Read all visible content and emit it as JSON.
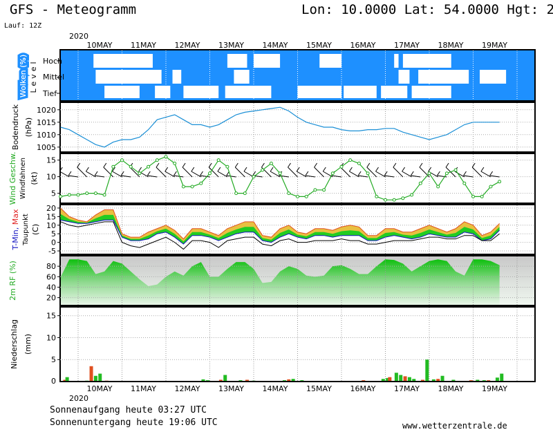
{
  "header": {
    "title": "GFS - Meteogramm",
    "location": "Lon: 10.0000 Lat: 54.0000 Hgt: 2",
    "run": "Lauf: 12Z"
  },
  "footer": {
    "sunrise": "Sonnenaufgang heute 03:27 UTC",
    "sunset": "Sonnenuntergang heute 19:06 UTC",
    "site": "www.wetterzentrale.de"
  },
  "axis": {
    "year": "2020",
    "days": [
      "10MAY",
      "11MAY",
      "12MAY",
      "13MAY",
      "14MAY",
      "15MAY",
      "16MAY",
      "17MAY",
      "18MAY",
      "19MAY"
    ]
  },
  "colors": {
    "cloud_bg": "#1e90ff",
    "pressure_line": "#1a8fd6",
    "wind_line": "#22aa22",
    "humidity": "#22cc22",
    "precip_green": "#22bb22",
    "precip_red": "#e05020",
    "tmax_orange": "#f0a030",
    "tmin_green": "#22cc22",
    "dewpoint": "#000000"
  },
  "chart_data": [
    {
      "type": "heatmap",
      "id": "clouds",
      "ylabel": "Wolken (%)",
      "level_label": "Level",
      "levels": [
        "Hoch",
        "Mittel",
        "Tief"
      ],
      "clear_segments": {
        "hoch": [
          [
            0.35,
            1.7
          ],
          [
            3.4,
            3.85
          ],
          [
            4.0,
            4.6
          ],
          [
            5.5,
            6.0
          ],
          [
            7.2,
            7.3
          ],
          [
            7.4,
            8.5
          ]
        ],
        "mittel": [
          [
            0.4,
            1.9
          ],
          [
            2.15,
            2.35
          ],
          [
            3.55,
            3.9
          ],
          [
            7.3,
            7.55
          ],
          [
            7.75,
            8.9
          ],
          [
            9.15,
            9.75
          ]
        ],
        "tief": [
          [
            0.6,
            1.4
          ],
          [
            1.75,
            2.1
          ],
          [
            2.4,
            3.2
          ],
          [
            3.35,
            4.4
          ],
          [
            5.0,
            6.0
          ],
          [
            6.05,
            6.8
          ],
          [
            6.9,
            7.5
          ],
          [
            7.6,
            8.5
          ]
        ]
      }
    },
    {
      "type": "line",
      "id": "pressure",
      "ylabel": "Bodendruck",
      "unit": "(hPa)",
      "ylim": [
        1003,
        1023
      ],
      "yticks": [
        1005,
        1010,
        1015,
        1020
      ],
      "x": [
        0,
        0.2,
        0.4,
        0.6,
        0.8,
        1.0,
        1.2,
        1.4,
        1.6,
        1.8,
        2.0,
        2.2,
        2.4,
        2.6,
        2.8,
        3.0,
        3.2,
        3.4,
        3.6,
        3.8,
        4.0,
        4.2,
        4.4,
        4.6,
        4.8,
        5.0,
        5.2,
        5.4,
        5.6,
        5.8,
        6.0,
        6.2,
        6.4,
        6.6,
        6.8,
        7.0,
        7.2,
        7.4,
        7.6,
        7.8,
        8.0,
        8.2,
        8.4,
        8.6,
        8.8,
        9.0,
        9.2,
        9.4,
        9.6,
        9.8,
        10.0
      ],
      "values": [
        1013,
        1012,
        1010,
        1008,
        1006,
        1005,
        1007,
        1008,
        1008,
        1009,
        1012,
        1016,
        1017,
        1018,
        1016,
        1014,
        1014,
        1013,
        1014,
        1016,
        1018,
        1019,
        1019.5,
        1020,
        1020.5,
        1021,
        1019.5,
        1017,
        1015,
        1014,
        1013,
        1013,
        1012,
        1011.5,
        1011.5,
        1012,
        1012,
        1012.5,
        1012.5,
        1011,
        1010,
        1009,
        1008,
        1009,
        1010,
        1012,
        1014,
        1015,
        1015,
        1015,
        1015
      ]
    },
    {
      "type": "line",
      "id": "wind",
      "ylabel": "Wind Geschw.",
      "ylabel2": "Windfahnen",
      "unit": "(kt)",
      "ylim": [
        2,
        17
      ],
      "yticks": [
        5,
        10,
        15
      ],
      "x": [
        0,
        0.2,
        0.4,
        0.6,
        0.8,
        1.0,
        1.2,
        1.4,
        1.6,
        1.8,
        2.0,
        2.2,
        2.4,
        2.6,
        2.8,
        3.0,
        3.2,
        3.4,
        3.6,
        3.8,
        4.0,
        4.2,
        4.4,
        4.6,
        4.8,
        5.0,
        5.2,
        5.4,
        5.6,
        5.8,
        6.0,
        6.2,
        6.4,
        6.6,
        6.8,
        7.0,
        7.2,
        7.4,
        7.6,
        7.8,
        8.0,
        8.2,
        8.4,
        8.6,
        8.8,
        9.0,
        9.2,
        9.4,
        9.6,
        9.8,
        10.0
      ],
      "values": [
        4,
        4.5,
        4.5,
        5,
        5,
        4.5,
        13,
        15,
        13,
        11,
        13,
        15,
        16,
        14,
        7,
        7,
        8,
        11,
        15,
        13,
        5,
        5,
        10,
        12,
        14,
        11,
        5,
        4,
        4,
        6,
        6,
        11,
        13,
        15,
        14,
        11,
        4,
        3,
        3,
        3.5,
        4.5,
        8,
        11,
        7,
        11,
        12,
        8,
        4,
        4,
        7,
        8.5
      ]
    },
    {
      "type": "area",
      "id": "temperature",
      "ylabel": "T-Min, Max",
      "ylabel2": "Taupunkt",
      "unit": "(C)",
      "ylim": [
        -7,
        22
      ],
      "yticks": [
        -5,
        0,
        5,
        10,
        15,
        20
      ],
      "x": [
        0,
        0.2,
        0.4,
        0.6,
        0.8,
        1.0,
        1.2,
        1.4,
        1.6,
        1.8,
        2.0,
        2.2,
        2.4,
        2.6,
        2.8,
        3.0,
        3.2,
        3.4,
        3.6,
        3.8,
        4.0,
        4.2,
        4.4,
        4.6,
        4.8,
        5.0,
        5.2,
        5.4,
        5.6,
        5.8,
        6.0,
        6.2,
        6.4,
        6.6,
        6.8,
        7.0,
        7.2,
        7.4,
        7.6,
        7.8,
        8.0,
        8.2,
        8.4,
        8.6,
        8.8,
        9.0,
        9.2,
        9.4,
        9.6,
        9.8,
        10.0
      ],
      "tmax": [
        20,
        15,
        13,
        12,
        16,
        19,
        19,
        5,
        3,
        3,
        6,
        8,
        10,
        7,
        2,
        8,
        8,
        6,
        4,
        8,
        10,
        12,
        12,
        4,
        3,
        8,
        10,
        6,
        5,
        8,
        8,
        7,
        9,
        10,
        9,
        4,
        4,
        8,
        8,
        6,
        6,
        8,
        10,
        8,
        6,
        8,
        12,
        10,
        4,
        6,
        11
      ],
      "tmin": [
        13,
        12,
        11,
        11,
        12,
        13,
        13,
        3,
        1,
        1,
        2,
        5,
        6,
        3,
        -1,
        4,
        4,
        3,
        1,
        3,
        5,
        6,
        6,
        1,
        0,
        3,
        5,
        3,
        2,
        4,
        4,
        3,
        4,
        4,
        4,
        1,
        1,
        3,
        4,
        3,
        2,
        3,
        5,
        4,
        3,
        3,
        6,
        5,
        1,
        2,
        7
      ],
      "dewpoint": [
        12,
        10,
        9,
        10,
        11,
        12,
        12,
        0,
        -2,
        -3,
        -1,
        1,
        3,
        0,
        -4,
        1,
        1,
        0,
        -3,
        1,
        2,
        3,
        3,
        -1,
        -2,
        1,
        2,
        0,
        0,
        1,
        1,
        1,
        2,
        1,
        1,
        -1,
        -1,
        0,
        1,
        1,
        1,
        2,
        3,
        3,
        2,
        2,
        4,
        4,
        1,
        1,
        5
      ]
    },
    {
      "type": "area",
      "id": "humidity",
      "ylabel": "2m RF (%)",
      "ylim": [
        5,
        100
      ],
      "yticks": [
        20,
        40,
        60,
        80
      ],
      "x": [
        0,
        0.2,
        0.4,
        0.6,
        0.8,
        1.0,
        1.2,
        1.4,
        1.6,
        1.8,
        2.0,
        2.2,
        2.4,
        2.6,
        2.8,
        3.0,
        3.2,
        3.4,
        3.6,
        3.8,
        4.0,
        4.2,
        4.4,
        4.6,
        4.8,
        5.0,
        5.2,
        5.4,
        5.6,
        5.8,
        6.0,
        6.2,
        6.4,
        6.6,
        6.8,
        7.0,
        7.2,
        7.4,
        7.6,
        7.8,
        8.0,
        8.2,
        8.4,
        8.6,
        8.8,
        9.0,
        9.2,
        9.4,
        9.6,
        9.8,
        10.0
      ],
      "values": [
        60,
        93,
        93,
        90,
        65,
        70,
        90,
        85,
        70,
        55,
        42,
        45,
        60,
        70,
        62,
        80,
        88,
        60,
        60,
        75,
        88,
        88,
        75,
        48,
        50,
        70,
        80,
        75,
        62,
        60,
        62,
        80,
        82,
        75,
        65,
        65,
        80,
        93,
        92,
        85,
        70,
        80,
        90,
        93,
        90,
        70,
        62,
        93,
        93,
        90,
        82
      ]
    },
    {
      "type": "bar",
      "id": "precipitation",
      "ylabel": "Niederschlag",
      "unit": "(mm)",
      "ylim": [
        0,
        17
      ],
      "yticks": [
        5,
        10,
        15
      ],
      "x": [
        0.05,
        0.1,
        0.55,
        0.65,
        0.75,
        0.85,
        1.0,
        3.2,
        3.3,
        3.6,
        3.7,
        4.05,
        4.2,
        4.35,
        5.05,
        5.15,
        5.25,
        5.45,
        6.85,
        7.3,
        7.4,
        7.45,
        7.6,
        7.7,
        7.8,
        7.9,
        8.0,
        8.2,
        8.3,
        8.45,
        8.55,
        8.65,
        8.9,
        9.3,
        9.45,
        9.6,
        9.7,
        9.9,
        10.0
      ],
      "values": [
        0.4,
        1.0,
        0.2,
        3.5,
        1.3,
        1.8,
        0.2,
        0.5,
        0.3,
        0.4,
        1.5,
        0.3,
        0.4,
        0.2,
        0.3,
        0.5,
        0.6,
        0.3,
        0.3,
        0.6,
        0.8,
        1.0,
        2.0,
        1.5,
        1.2,
        1.0,
        0.6,
        0.4,
        5.0,
        0.5,
        0.6,
        1.3,
        0.4,
        0.3,
        0.4,
        0.3,
        0.3,
        0.9,
        1.8
      ]
    }
  ]
}
